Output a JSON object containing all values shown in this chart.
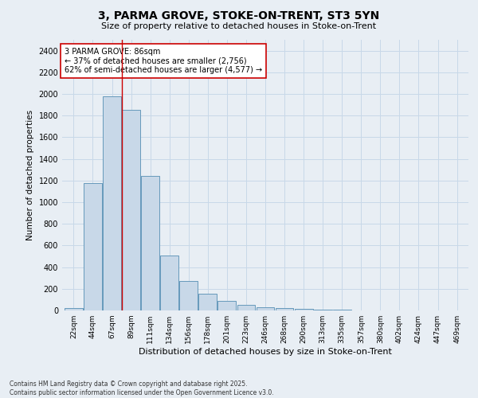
{
  "title_line1": "3, PARMA GROVE, STOKE-ON-TRENT, ST3 5YN",
  "title_line2": "Size of property relative to detached houses in Stoke-on-Trent",
  "xlabel": "Distribution of detached houses by size in Stoke-on-Trent",
  "ylabel": "Number of detached properties",
  "categories": [
    "22sqm",
    "44sqm",
    "67sqm",
    "89sqm",
    "111sqm",
    "134sqm",
    "156sqm",
    "178sqm",
    "201sqm",
    "223sqm",
    "246sqm",
    "268sqm",
    "290sqm",
    "313sqm",
    "335sqm",
    "357sqm",
    "380sqm",
    "402sqm",
    "424sqm",
    "447sqm",
    "469sqm"
  ],
  "values": [
    25,
    1175,
    1975,
    1850,
    1240,
    510,
    275,
    155,
    85,
    50,
    30,
    25,
    15,
    8,
    5,
    3,
    2,
    2,
    1,
    1,
    1
  ],
  "bar_color": "#c8d8e8",
  "bar_edge_color": "#6699bb",
  "red_line_x": 2.5,
  "annotation_title": "3 PARMA GROVE: 86sqm",
  "annotation_line2": "← 37% of detached houses are smaller (2,756)",
  "annotation_line3": "62% of semi-detached houses are larger (4,577) →",
  "annotation_box_color": "#ffffff",
  "annotation_box_edge": "#cc0000",
  "red_line_color": "#cc0000",
  "grid_color": "#c8d8e8",
  "background_color": "#e8eef4",
  "ylim": [
    0,
    2500
  ],
  "yticks": [
    0,
    200,
    400,
    600,
    800,
    1000,
    1200,
    1400,
    1600,
    1800,
    2000,
    2200,
    2400
  ],
  "footer_line1": "Contains HM Land Registry data © Crown copyright and database right 2025.",
  "footer_line2": "Contains public sector information licensed under the Open Government Licence v3.0."
}
